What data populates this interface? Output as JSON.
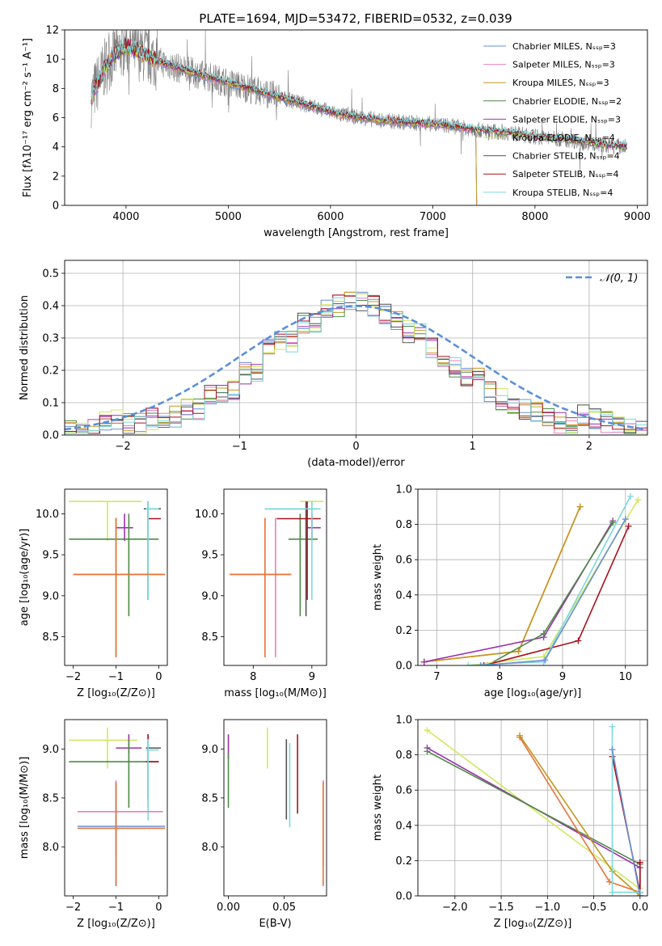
{
  "figure": {
    "title": "PLATE=1694, MJD=53472, FIBERID=0532, z=0.039"
  },
  "colors": {
    "Chabrier MILES": "#6a8fd6",
    "Salpeter MILES": "#e67fbf",
    "Kroupa MILES": "#c5961e",
    "Chabrier ELODIE": "#4c8c45",
    "Salpeter ELODIE": "#9b2fae",
    "Kroupa ELODIE": "#d1e85f",
    "Chabrier STELIB": "#555555",
    "Salpeter STELIB": "#a8111d",
    "Kroupa STELIB": "#7dd8dd",
    "data": "#7f7f7f",
    "gauss": "#5b8fd9",
    "orange": "#e8743b"
  },
  "chart_data": [
    {
      "id": "spectrum",
      "type": "line",
      "title": "PLATE=1694, MJD=53472, FIBERID=0532, z=0.039",
      "xlabel": "wavelength [Angstrom, rest frame]",
      "ylabel": "Flux [fλ10⁻¹⁷ erg cm⁻² s⁻¹ A⁻¹]",
      "xlim": [
        3400,
        9100
      ],
      "ylim": [
        0,
        12
      ],
      "xticks": [
        4000,
        5000,
        6000,
        7000,
        8000,
        9000
      ],
      "yticks": [
        0,
        2,
        4,
        6,
        8,
        10,
        12
      ],
      "legend_position": "top-right",
      "continuum": {
        "x": [
          3650,
          3700,
          3800,
          3900,
          4000,
          4100,
          4200,
          4300,
          4500,
          4700,
          4900,
          5100,
          5300,
          5500,
          5700,
          5900,
          6100,
          6300,
          6500,
          6700,
          6900,
          7100,
          7300,
          7500,
          7700,
          7900,
          8100,
          8300,
          8500,
          8700,
          8900
        ],
        "y": [
          7.2,
          8.0,
          9.5,
          10.4,
          10.9,
          10.6,
          10.3,
          9.9,
          9.4,
          9.0,
          8.6,
          8.2,
          7.8,
          7.4,
          7.0,
          6.6,
          6.2,
          6.0,
          5.8,
          5.7,
          5.6,
          5.5,
          5.3,
          5.1,
          5.0,
          4.8,
          4.6,
          4.5,
          4.3,
          4.1,
          4.0
        ]
      },
      "series": [
        {
          "name": "Chabrier MILES",
          "nssp": "Nₛₛₚ=3"
        },
        {
          "name": "Salpeter MILES",
          "nssp": "Nₛₛₚ=3"
        },
        {
          "name": "Kroupa MILES",
          "nssp": "Nₛₛₚ=3"
        },
        {
          "name": "Chabrier ELODIE",
          "nssp": "Nₛₛₚ=2"
        },
        {
          "name": "Salpeter ELODIE",
          "nssp": "Nₛₛₚ=3"
        },
        {
          "name": "Kroupa ELODIE",
          "nssp": "Nₛₛₚ=4"
        },
        {
          "name": "Chabrier STELIB",
          "nssp": "Nₛₛₚ=4"
        },
        {
          "name": "Salpeter STELIB",
          "nssp": "Nₛₛₚ=4"
        },
        {
          "name": "Kroupa STELIB",
          "nssp": "Nₛₛₚ=4"
        }
      ]
    },
    {
      "id": "residuals",
      "type": "line",
      "xlabel": "(data-model)/error",
      "ylabel": "Normed distribution",
      "xlim": [
        -2.5,
        2.5
      ],
      "ylim": [
        0,
        0.54
      ],
      "xticks": [
        -2,
        -1,
        0,
        1,
        2
      ],
      "yticks": [
        0.0,
        0.1,
        0.2,
        0.3,
        0.4,
        0.5
      ],
      "grid": true,
      "legend": "𝒩(0, 1)",
      "legend_position": "top-right",
      "bin_width": 0.1,
      "hist_envelope": [
        0.03,
        0.035,
        0.04,
        0.05,
        0.055,
        0.07,
        0.08,
        0.1,
        0.12,
        0.14,
        0.165,
        0.19,
        0.22,
        0.26,
        0.29,
        0.32,
        0.35,
        0.37,
        0.39,
        0.4,
        0.41,
        0.4,
        0.39,
        0.37,
        0.35,
        0.32,
        0.3,
        0.27,
        0.24,
        0.21,
        0.18,
        0.16,
        0.13,
        0.11,
        0.09,
        0.075,
        0.06,
        0.05,
        0.04,
        0.03
      ]
    },
    {
      "id": "age-vs-Z",
      "type": "scatter",
      "xlabel": "Z [log₁₀(Z/Z⊙)]",
      "ylabel": "age  [log₁₀(age/yr)]",
      "xlim": [
        -2.2,
        0.2
      ],
      "ylim": [
        8.15,
        10.3
      ],
      "xticks": [
        -2,
        -1,
        0
      ],
      "yticks": [
        8.5,
        9.0,
        9.5,
        10.0
      ],
      "points": [
        {
          "s": "Kroupa ELODIE",
          "x": -1.2,
          "xe": [
            -2.1,
            -0.4
          ],
          "y": 10.15,
          "ye": [
            9.67,
            10.15
          ]
        },
        {
          "s": "Salpeter ELODIE",
          "x": -0.8,
          "xe": [
            -1.0,
            -0.6
          ],
          "y": 9.83,
          "ye": [
            9.67,
            10.0
          ]
        },
        {
          "s": "Chabrier ELODIE",
          "x": -0.7,
          "xe": [
            -2.1,
            0.0
          ],
          "y": 9.69,
          "ye": [
            8.75,
            10.0
          ]
        },
        {
          "s": "Chabrier STELIB",
          "x": -0.25,
          "xe": [
            -0.35,
            0.05
          ],
          "y": 10.06,
          "ye": [
            8.95,
            10.15
          ]
        },
        {
          "s": "Salpeter STELIB",
          "x": -0.25,
          "xe": [
            -0.25,
            0.05
          ],
          "y": 9.94,
          "ye": [
            8.95,
            10.15
          ]
        },
        {
          "s": "Kroupa STELIB",
          "x": -0.25,
          "xe": [
            -0.3,
            0.0
          ],
          "y": 10.06,
          "ye": [
            8.95,
            10.15
          ]
        },
        {
          "s": "Kroupa MILES",
          "x": -1.0,
          "xe": [
            -2.0,
            0.15
          ],
          "y": 9.26,
          "ye": [
            8.25,
            9.95
          ]
        },
        {
          "s": "orange",
          "x": -1.0,
          "xe": [
            -2.0,
            0.15
          ],
          "y": 9.26,
          "ye": [
            8.25,
            9.95
          ]
        }
      ]
    },
    {
      "id": "age-vs-mass",
      "type": "scatter",
      "xlabel": "mass [log₁₀(M/M⊙)]",
      "ylabel": "",
      "xlim": [
        7.5,
        9.25
      ],
      "ylim": [
        8.15,
        10.3
      ],
      "xticks": [
        8,
        9
      ],
      "yticks": [
        8.5,
        9.0,
        9.5,
        10.0
      ],
      "points": [
        {
          "s": "Kroupa ELODIE",
          "x": 9.0,
          "xe": [
            8.8,
            9.2
          ],
          "y": 10.15,
          "ye": [
            9.67,
            10.15
          ]
        },
        {
          "s": "Salpeter ELODIE",
          "x": 9.0,
          "xe": [
            8.9,
            9.15
          ],
          "y": 9.83,
          "ye": [
            9.67,
            10.0
          ]
        },
        {
          "s": "Chabrier ELODIE",
          "x": 8.8,
          "xe": [
            8.6,
            9.1
          ],
          "y": 9.69,
          "ye": [
            8.75,
            10.0
          ]
        },
        {
          "s": "Chabrier STELIB",
          "x": 8.9,
          "xe": [
            8.2,
            9.1
          ],
          "y": 10.06,
          "ye": [
            8.75,
            10.15
          ]
        },
        {
          "s": "Salpeter STELIB",
          "x": 8.92,
          "xe": [
            8.4,
            9.15
          ],
          "y": 9.94,
          "ye": [
            8.95,
            10.15
          ]
        },
        {
          "s": "Kroupa STELIB",
          "x": 9.0,
          "xe": [
            8.2,
            9.15
          ],
          "y": 10.06,
          "ye": [
            8.95,
            10.15
          ]
        },
        {
          "s": "Salpeter MILES",
          "x": 8.38,
          "xe": [
            8.38,
            8.38
          ],
          "y": 9.26,
          "ye": [
            8.25,
            9.95
          ]
        },
        {
          "s": "Kroupa MILES",
          "x": 8.2,
          "xe": [
            7.6,
            8.65
          ],
          "y": 9.26,
          "ye": [
            8.25,
            9.95
          ]
        },
        {
          "s": "orange",
          "x": 8.2,
          "xe": [
            7.6,
            8.65
          ],
          "y": 9.26,
          "ye": [
            8.25,
            9.95
          ]
        }
      ]
    },
    {
      "id": "massweight-vs-age",
      "type": "line",
      "xlabel": "age  [log₁₀(age/yr)]",
      "ylabel": "mass weight",
      "xlim": [
        6.7,
        10.35
      ],
      "ylim": [
        0,
        1
      ],
      "xticks": [
        7,
        8,
        9,
        10
      ],
      "yticks": [
        0.0,
        0.2,
        0.4,
        0.6,
        0.8,
        1.0
      ],
      "grid": true,
      "series": [
        {
          "s": "orange",
          "x": [
            6.8,
            8.3,
            9.28
          ],
          "y": [
            0.02,
            0.08,
            0.9
          ]
        },
        {
          "s": "Kroupa MILES",
          "x": [
            6.8,
            8.3,
            9.28
          ],
          "y": [
            0.02,
            0.08,
            0.9
          ]
        },
        {
          "s": "Salpeter ELODIE",
          "x": [
            6.8,
            8.7,
            9.8
          ],
          "y": [
            0.02,
            0.16,
            0.82
          ]
        },
        {
          "s": "Chabrier ELODIE",
          "x": [
            7.8,
            8.7,
            9.8
          ],
          "y": [
            0.0,
            0.18,
            0.81
          ]
        },
        {
          "s": "Kroupa ELODIE",
          "x": [
            7.5,
            8.7,
            10.2
          ],
          "y": [
            0.0,
            0.05,
            0.94
          ]
        },
        {
          "s": "Salpeter STELIB",
          "x": [
            7.75,
            9.25,
            10.05
          ],
          "y": [
            0.0,
            0.14,
            0.79
          ]
        },
        {
          "s": "Kroupa STELIB",
          "x": [
            7.5,
            8.7,
            10.08
          ],
          "y": [
            0.0,
            0.02,
            0.96
          ]
        },
        {
          "s": "Chabrier MILES",
          "x": [
            7.7,
            8.72,
            10.0
          ],
          "y": [
            0.0,
            0.03,
            0.83
          ]
        }
      ]
    },
    {
      "id": "mass-vs-Z",
      "type": "scatter",
      "xlabel": "Z [log₁₀(Z/Z⊙)]",
      "ylabel": "mass [log₁₀(M/M⊙)]",
      "xlim": [
        -2.2,
        0.2
      ],
      "ylim": [
        7.5,
        9.3
      ],
      "xticks": [
        -2,
        -1,
        0
      ],
      "yticks": [
        8.0,
        8.5,
        9.0
      ],
      "points": [
        {
          "s": "Kroupa ELODIE",
          "x": -1.2,
          "xe": [
            -2.1,
            -0.5
          ],
          "y": 9.09,
          "ye": [
            8.8,
            9.22
          ]
        },
        {
          "s": "Salpeter ELODIE",
          "x": -0.7,
          "xe": [
            -1.0,
            -0.4
          ],
          "y": 9.01,
          "ye": [
            8.95,
            9.15
          ]
        },
        {
          "s": "Chabrier ELODIE",
          "x": -0.7,
          "xe": [
            -2.1,
            0.0
          ],
          "y": 8.87,
          "ye": [
            8.4,
            9.1
          ]
        },
        {
          "s": "Chabrier STELIB",
          "x": -0.25,
          "xe": [
            -0.3,
            0.05
          ],
          "y": 9.01,
          "ye": [
            8.4,
            9.15
          ]
        },
        {
          "s": "Salpeter STELIB",
          "x": -0.25,
          "xe": [
            -0.3,
            0.0
          ],
          "y": 8.87,
          "ye": [
            8.5,
            9.15
          ]
        },
        {
          "s": "Kroupa STELIB",
          "x": -0.25,
          "xe": [
            -0.3,
            0.0
          ],
          "y": 8.99,
          "ye": [
            8.27,
            9.1
          ]
        },
        {
          "s": "Salpeter MILES",
          "x": -1.0,
          "xe": [
            -1.9,
            0.1
          ],
          "y": 8.36,
          "ye": [
            7.9,
            8.68
          ]
        },
        {
          "s": "Chabrier MILES",
          "x": -1.0,
          "xe": [
            -1.9,
            0.15
          ],
          "y": 8.21,
          "ye": [
            7.6,
            8.66
          ]
        },
        {
          "s": "orange",
          "x": -1.0,
          "xe": [
            -1.9,
            0.15
          ],
          "y": 8.19,
          "ye": [
            7.6,
            8.66
          ]
        }
      ]
    },
    {
      "id": "mass-vs-EBV",
      "type": "scatter",
      "xlabel": "E(B-V)",
      "ylabel": "",
      "xlim": [
        -0.004,
        0.088
      ],
      "ylim": [
        7.5,
        9.3
      ],
      "xticks": [
        0.0,
        0.05
      ],
      "xticklabels": [
        "0.00",
        "0.05"
      ],
      "yticks": [
        8.0,
        8.5,
        9.0
      ],
      "points": [
        {
          "s": "Salpeter ELODIE",
          "x": 0.0,
          "y": 9.0,
          "ye": [
            8.9,
            9.15
          ]
        },
        {
          "s": "Chabrier ELODIE",
          "x": 0.0,
          "y": 8.7,
          "ye": [
            8.4,
            8.95
          ]
        },
        {
          "s": "Kroupa ELODIE",
          "x": 0.035,
          "y": 9.0,
          "ye": [
            8.8,
            9.22
          ]
        },
        {
          "s": "Chabrier STELIB",
          "x": 0.052,
          "y": 8.7,
          "ye": [
            8.28,
            9.1
          ]
        },
        {
          "s": "Kroupa STELIB",
          "x": 0.055,
          "y": 8.65,
          "ye": [
            8.2,
            9.06
          ]
        },
        {
          "s": "Salpeter STELIB",
          "x": 0.062,
          "y": 8.7,
          "ye": [
            8.34,
            9.15
          ]
        },
        {
          "s": "Salpeter MILES",
          "x": 0.085,
          "y": 8.3,
          "ye": [
            7.8,
            8.68
          ]
        },
        {
          "s": "orange",
          "x": 0.085,
          "y": 8.1,
          "ye": [
            7.6,
            8.66
          ]
        }
      ]
    },
    {
      "id": "massweight-vs-Z",
      "type": "line",
      "xlabel": "Z [log₁₀(Z/Z⊙)]",
      "ylabel": "mass weight",
      "xlim": [
        -2.4,
        0.08
      ],
      "ylim": [
        0,
        1
      ],
      "xticks": [
        -2.0,
        -1.5,
        -1.0,
        -0.5,
        0.0
      ],
      "xticklabels": [
        "−2.0",
        "−1.5",
        "−1.0",
        "−0.5",
        "0.0"
      ],
      "yticks": [
        0.0,
        0.2,
        0.4,
        0.6,
        0.8,
        1.0
      ],
      "grid": true,
      "series": [
        {
          "s": "Kroupa ELODIE",
          "x": [
            -2.3,
            0.0,
            0.0
          ],
          "y": [
            0.94,
            0.04,
            0.02
          ]
        },
        {
          "s": "Salpeter ELODIE",
          "x": [
            -2.3,
            0.0,
            0.0
          ],
          "y": [
            0.84,
            0.16,
            0.0
          ]
        },
        {
          "s": "Chabrier ELODIE",
          "x": [
            -2.3,
            0.0,
            0.0
          ],
          "y": [
            0.82,
            0.18,
            0.0
          ]
        },
        {
          "s": "orange",
          "x": [
            -1.3,
            -0.33,
            0.0
          ],
          "y": [
            0.9,
            0.08,
            0.02
          ]
        },
        {
          "s": "Kroupa MILES",
          "x": [
            -1.3,
            -0.3,
            0.0
          ],
          "y": [
            0.91,
            0.14,
            0.0
          ]
        },
        {
          "s": "Salpeter STELIB",
          "x": [
            -0.3,
            0.0,
            0.0
          ],
          "y": [
            0.79,
            0.02,
            0.19
          ]
        },
        {
          "s": "Kroupa STELIB",
          "x": [
            -0.3,
            -0.3,
            0.0
          ],
          "y": [
            0.96,
            0.02,
            0.02
          ]
        },
        {
          "s": "Chabrier MILES",
          "x": [
            -0.3,
            0.0
          ],
          "y": [
            0.83,
            0.0
          ]
        }
      ]
    }
  ]
}
